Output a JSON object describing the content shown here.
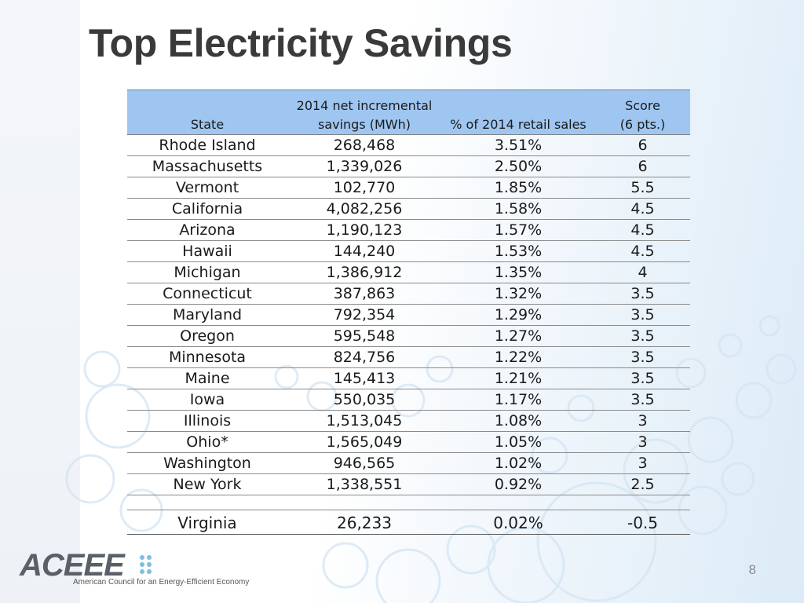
{
  "slide": {
    "title": "Top Electricity Savings",
    "page_number": "8"
  },
  "table": {
    "headers": {
      "state": "State",
      "mwh_line1": "2014 net incremental",
      "mwh_line2": "savings (MWh)",
      "pct": "% of 2014 retail sales",
      "score_line1": "Score",
      "score_line2": "(6 pts.)"
    },
    "rows": [
      {
        "state": "Rhode Island",
        "mwh": "268,468",
        "pct": "3.51%",
        "score": "6"
      },
      {
        "state": "Massachusetts",
        "mwh": "1,339,026",
        "pct": "2.50%",
        "score": "6"
      },
      {
        "state": "Vermont",
        "mwh": "102,770",
        "pct": "1.85%",
        "score": "5.5"
      },
      {
        "state": "California",
        "mwh": "4,082,256",
        "pct": "1.58%",
        "score": "4.5"
      },
      {
        "state": "Arizona",
        "mwh": "1,190,123",
        "pct": "1.57%",
        "score": "4.5"
      },
      {
        "state": "Hawaii",
        "mwh": "144,240",
        "pct": "1.53%",
        "score": "4.5"
      },
      {
        "state": "Michigan",
        "mwh": "1,386,912",
        "pct": "1.35%",
        "score": "4"
      },
      {
        "state": "Connecticut",
        "mwh": "387,863",
        "pct": "1.32%",
        "score": "3.5"
      },
      {
        "state": "Maryland",
        "mwh": "792,354",
        "pct": "1.29%",
        "score": "3.5"
      },
      {
        "state": "Oregon",
        "mwh": "595,548",
        "pct": "1.27%",
        "score": "3.5"
      },
      {
        "state": "Minnesota",
        "mwh": "824,756",
        "pct": "1.22%",
        "score": "3.5"
      },
      {
        "state": "Maine",
        "mwh": "145,413",
        "pct": "1.21%",
        "score": "3.5"
      },
      {
        "state": "Iowa",
        "mwh": "550,035",
        "pct": "1.17%",
        "score": "3.5"
      },
      {
        "state": "Illinois",
        "mwh": "1,513,045",
        "pct": "1.08%",
        "score": "3"
      },
      {
        "state": "Ohio*",
        "mwh": "1,565,049",
        "pct": "1.05%",
        "score": "3"
      },
      {
        "state": "Washington",
        "mwh": "946,565",
        "pct": "1.02%",
        "score": "3"
      },
      {
        "state": "New York",
        "mwh": "1,338,551",
        "pct": "0.92%",
        "score": "2.5"
      }
    ],
    "highlight_row": {
      "state": "Virginia",
      "mwh": "26,233",
      "pct": "0.02%",
      "score": "-0.5"
    }
  },
  "logo": {
    "wordmark": "ACEEE",
    "tagline": "American Council for an Energy-Efficient Economy",
    "mark_color": "#5a6068",
    "dot_color": "#7cc0e3"
  },
  "colors": {
    "header_bg": "#9fc6f1",
    "title": "#3a3a3a",
    "bubble": "#c9dff0"
  }
}
